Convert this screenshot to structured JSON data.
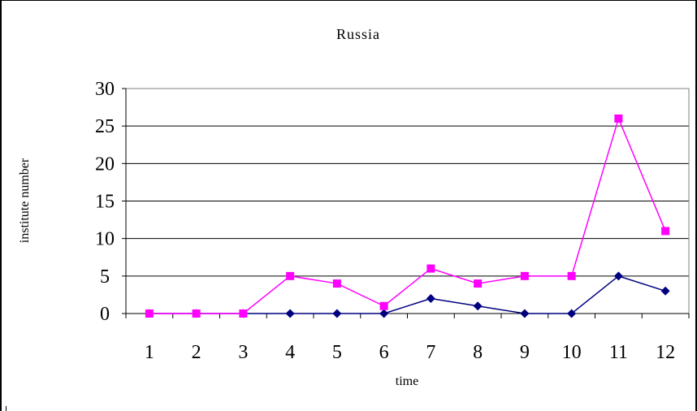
{
  "chart_data": {
    "type": "line",
    "title": "Russia",
    "xlabel": "time",
    "ylabel": "institute number",
    "categories": [
      "1",
      "2",
      "3",
      "4",
      "5",
      "6",
      "7",
      "8",
      "9",
      "10",
      "11",
      "12"
    ],
    "ylim": [
      0,
      30
    ],
    "yticks": [
      "0",
      "5",
      "10",
      "15",
      "20",
      "25",
      "30"
    ],
    "grid": "horizontal",
    "series": [
      {
        "values": [
          0,
          0,
          0,
          0,
          0,
          0,
          2,
          1,
          0,
          0,
          5,
          3
        ],
        "color": "#00007F",
        "marker": "diamond"
      },
      {
        "values": [
          0,
          0,
          0,
          5,
          4,
          1,
          6,
          4,
          5,
          5,
          26,
          11
        ],
        "color": "#FF00FF",
        "marker": "square"
      }
    ]
  }
}
